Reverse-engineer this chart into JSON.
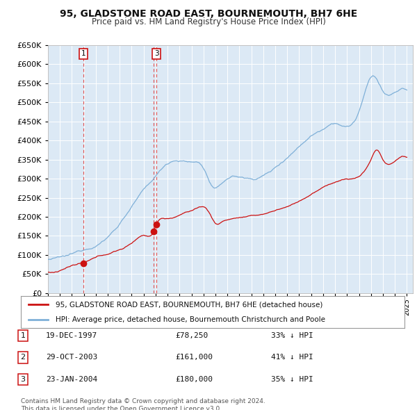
{
  "title": "95, GLADSTONE ROAD EAST, BOURNEMOUTH, BH7 6HE",
  "subtitle": "Price paid vs. HM Land Registry's House Price Index (HPI)",
  "ylim": [
    0,
    650000
  ],
  "yticks": [
    0,
    50000,
    100000,
    150000,
    200000,
    250000,
    300000,
    350000,
    400000,
    450000,
    500000,
    550000,
    600000,
    650000
  ],
  "xlim_start": 1995.0,
  "xlim_end": 2025.5,
  "background_color": "#dce9f5",
  "grid_color": "#ffffff",
  "hpi_color": "#7fb0d8",
  "price_color": "#cc1111",
  "sales": [
    {
      "label": "1",
      "date_num": 1997.97,
      "price": 78250
    },
    {
      "label": "2",
      "date_num": 2003.83,
      "price": 161000
    },
    {
      "label": "3",
      "date_num": 2004.07,
      "price": 180000
    }
  ],
  "sale_vline_color": "#dd3333",
  "legend_entries": [
    "95, GLADSTONE ROAD EAST, BOURNEMOUTH, BH7 6HE (detached house)",
    "HPI: Average price, detached house, Bournemouth Christchurch and Poole"
  ],
  "table_data": [
    [
      "1",
      "19-DEC-1997",
      "£78,250",
      "33% ↓ HPI"
    ],
    [
      "2",
      "29-OCT-2003",
      "£161,000",
      "41% ↓ HPI"
    ],
    [
      "3",
      "23-JAN-2004",
      "£180,000",
      "35% ↓ HPI"
    ]
  ],
  "footnote1": "Contains HM Land Registry data © Crown copyright and database right 2024.",
  "footnote2": "This data is licensed under the Open Government Licence v3.0."
}
